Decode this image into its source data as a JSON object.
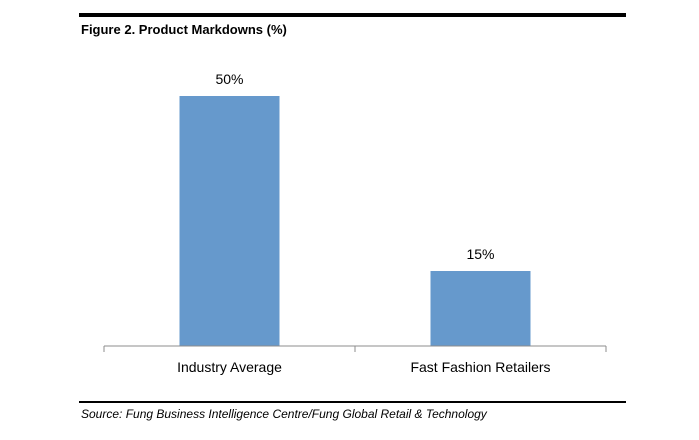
{
  "figure": {
    "title": "Figure 2. Product Markdowns (%)",
    "source": "Source: Fung Business Intelligence Centre/Fung Global Retail & Technology"
  },
  "chart_data": {
    "type": "bar",
    "title": "Figure 2. Product Markdowns (%)",
    "categories": [
      "Industry Average",
      "Fast Fashion Retailers"
    ],
    "values": [
      50,
      15
    ],
    "data_labels": [
      "50%",
      "15%"
    ],
    "xlabel": "",
    "ylabel": "",
    "ylim": [
      0,
      60
    ],
    "grid": false,
    "legend": "none",
    "colors": {
      "bar": "#6699cc",
      "axis": "#8c8c8c"
    }
  }
}
